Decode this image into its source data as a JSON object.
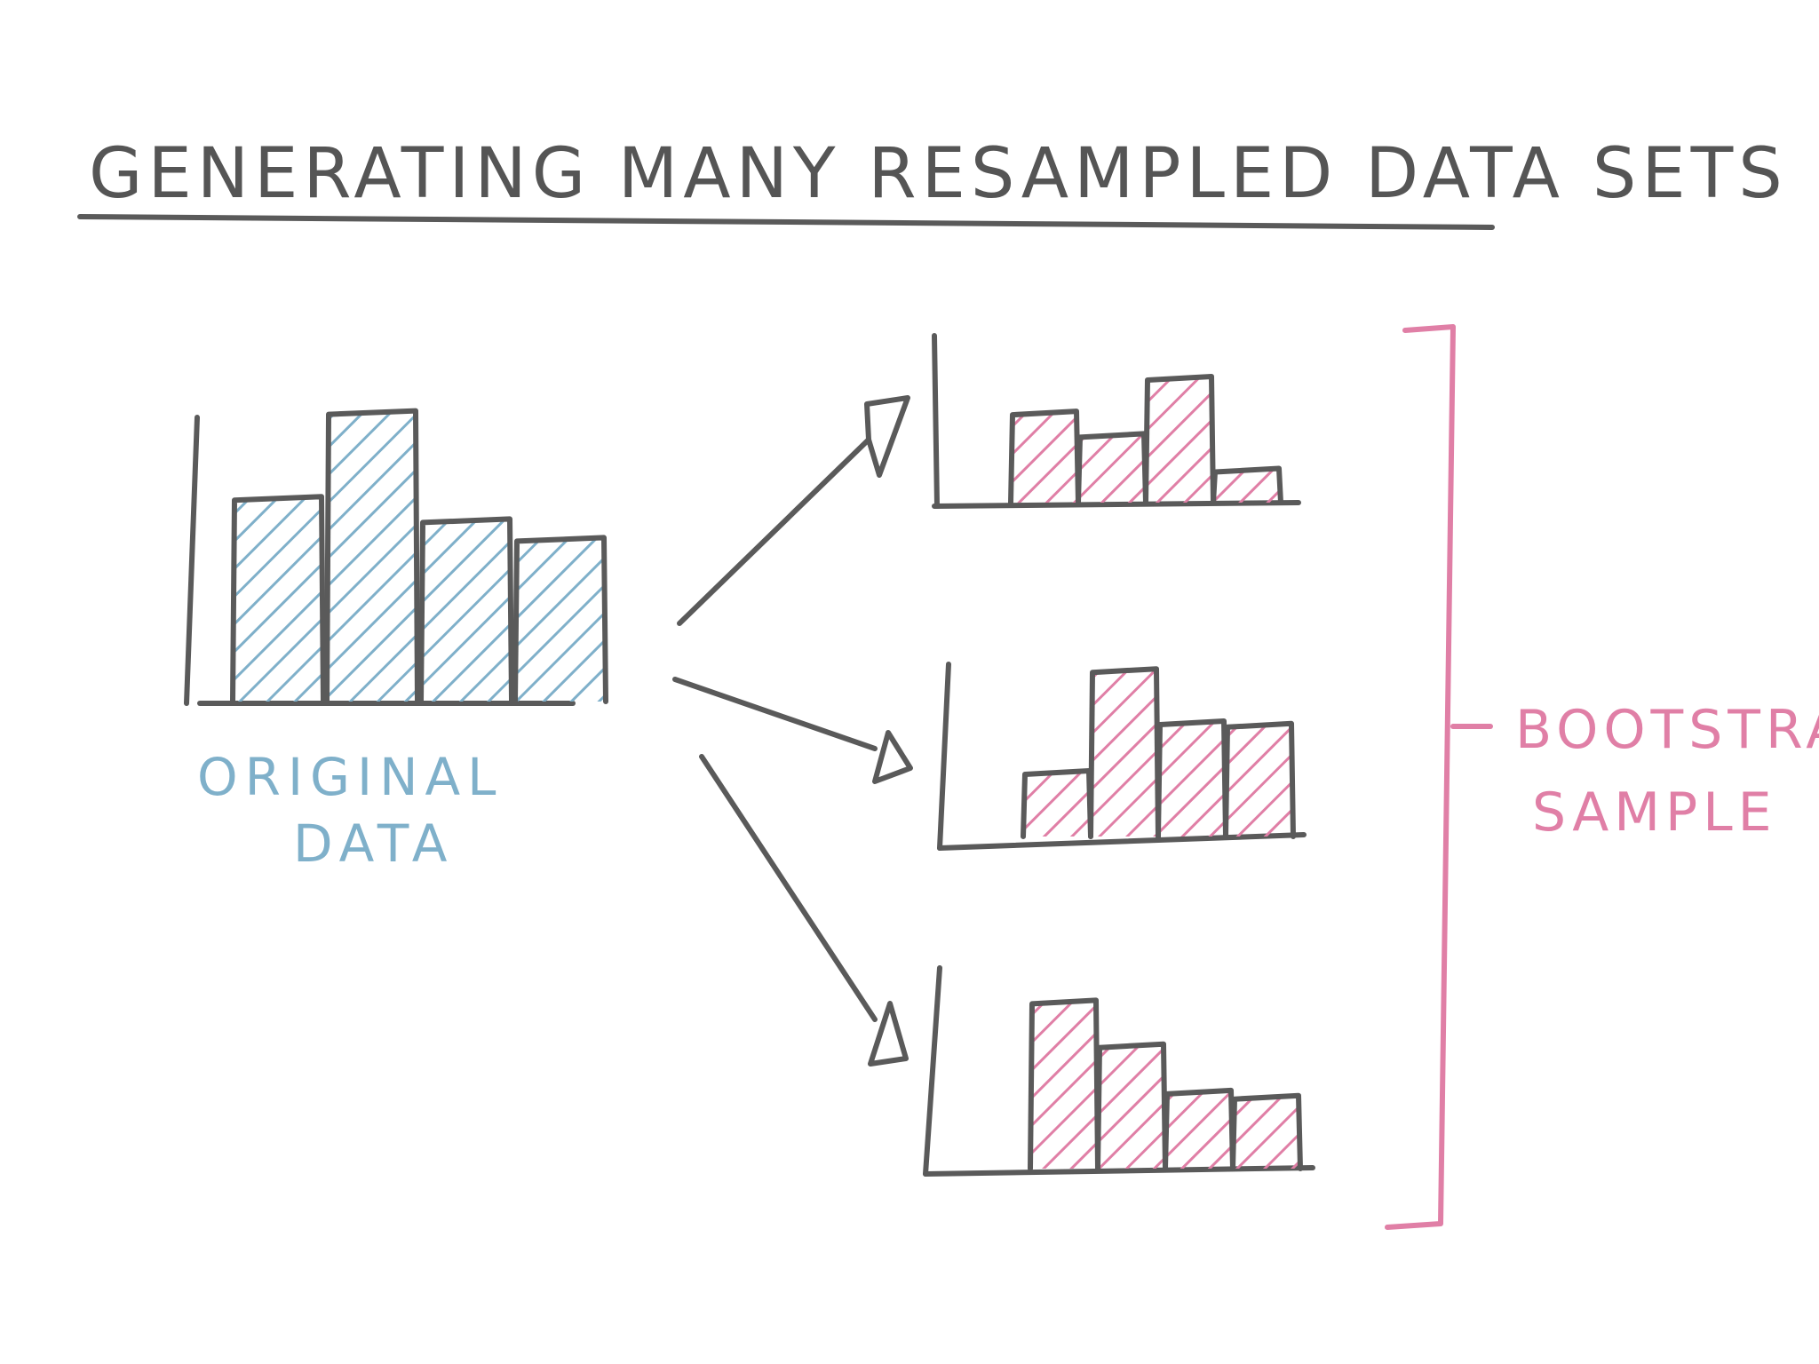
{
  "title": "GENERATING MANY RESAMPLED DATA SETS",
  "original_label": [
    "ORIGINAL",
    "DATA"
  ],
  "bootstrap_label": [
    "BOOTSTRAP",
    "SAMPLE"
  ],
  "colors": {
    "ink": "#5a5a5a",
    "original": "#7fb0ca",
    "bootstrap": "#e07fa6"
  },
  "charts": {
    "original": [
      0.54,
      0.77,
      0.48,
      0.43
    ],
    "samples": [
      [
        0.43,
        0.32,
        0.6,
        0.15
      ],
      [
        0.25,
        0.66,
        0.45,
        0.44
      ],
      [
        0.64,
        0.47,
        0.29,
        0.27
      ]
    ]
  }
}
